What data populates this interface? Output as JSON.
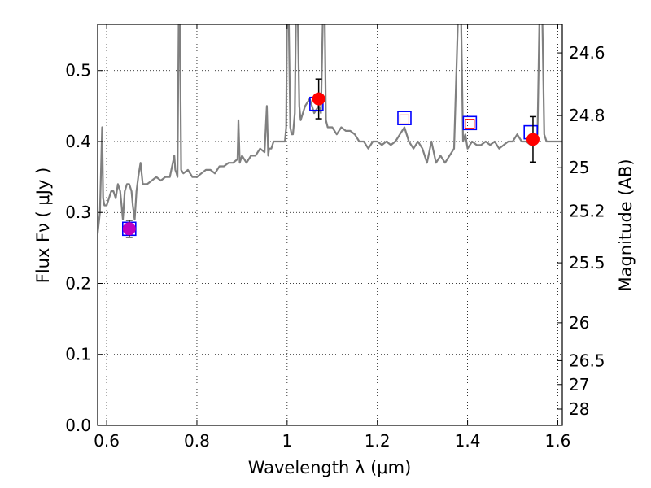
{
  "chart_data": {
    "type": "scatter",
    "xlabel": "Wavelength  λ (μm)",
    "ylabel": "Flux  Fν  ( μJy )",
    "y2label": "Magnitude (AB)",
    "xlim": [
      0.58,
      1.61
    ],
    "ylim": [
      0.0,
      0.565
    ],
    "grid": true,
    "x_ticks": [
      {
        "value": 0.6,
        "label": "0.6"
      },
      {
        "value": 0.8,
        "label": "0.8"
      },
      {
        "value": 1.0,
        "label": "1"
      },
      {
        "value": 1.2,
        "label": "1.2"
      },
      {
        "value": 1.4,
        "label": "1.4"
      },
      {
        "value": 1.6,
        "label": "1.6"
      }
    ],
    "y_ticks": [
      {
        "value": 0.0,
        "label": "0.0"
      },
      {
        "value": 0.1,
        "label": "0.1"
      },
      {
        "value": 0.2,
        "label": "0.2"
      },
      {
        "value": 0.3,
        "label": "0.3"
      },
      {
        "value": 0.4,
        "label": "0.4"
      },
      {
        "value": 0.5,
        "label": "0.5"
      }
    ],
    "y2_ticks": [
      {
        "mag": 24.6,
        "label": "24.6"
      },
      {
        "mag": 24.8,
        "label": "24.8"
      },
      {
        "mag": 25.0,
        "label": "25"
      },
      {
        "mag": 25.2,
        "label": "25.2"
      },
      {
        "mag": 25.5,
        "label": "25.5"
      },
      {
        "mag": 26.0,
        "label": "26"
      },
      {
        "mag": 26.5,
        "label": "26.5"
      },
      {
        "mag": 27.0,
        "label": "27"
      },
      {
        "mag": 28.0,
        "label": "28"
      }
    ],
    "series": [
      {
        "kind": "model_spectrum",
        "color": "#808080",
        "x": [
          0.58,
          0.585,
          0.59,
          0.592,
          0.595,
          0.6,
          0.605,
          0.61,
          0.615,
          0.62,
          0.625,
          0.63,
          0.633,
          0.636,
          0.64,
          0.645,
          0.65,
          0.655,
          0.658,
          0.662,
          0.666,
          0.67,
          0.675,
          0.68,
          0.69,
          0.7,
          0.71,
          0.72,
          0.73,
          0.74,
          0.75,
          0.752,
          0.755,
          0.757,
          0.76,
          0.762,
          0.765,
          0.77,
          0.78,
          0.79,
          0.8,
          0.81,
          0.82,
          0.83,
          0.84,
          0.85,
          0.86,
          0.87,
          0.88,
          0.89,
          0.892,
          0.895,
          0.9,
          0.91,
          0.92,
          0.93,
          0.94,
          0.95,
          0.955,
          0.958,
          0.96,
          0.965,
          0.97,
          0.98,
          0.99,
          0.995,
          0.998,
          1.0,
          1.003,
          1.007,
          1.01,
          1.013,
          1.017,
          1.02,
          1.023,
          1.027,
          1.03,
          1.035,
          1.04,
          1.05,
          1.06,
          1.07,
          1.075,
          1.08,
          1.083,
          1.086,
          1.09,
          1.1,
          1.11,
          1.12,
          1.13,
          1.14,
          1.15,
          1.16,
          1.17,
          1.18,
          1.19,
          1.2,
          1.21,
          1.22,
          1.23,
          1.24,
          1.25,
          1.26,
          1.27,
          1.28,
          1.29,
          1.3,
          1.31,
          1.32,
          1.33,
          1.34,
          1.35,
          1.36,
          1.37,
          1.38,
          1.385,
          1.39,
          1.395,
          1.4,
          1.41,
          1.42,
          1.43,
          1.44,
          1.45,
          1.46,
          1.47,
          1.48,
          1.49,
          1.5,
          1.51,
          1.52,
          1.53,
          1.54,
          1.55,
          1.555,
          1.56,
          1.565,
          1.57,
          1.575,
          1.58,
          1.59,
          1.6,
          1.61
        ],
        "y": [
          0.27,
          0.3,
          0.42,
          0.32,
          0.31,
          0.31,
          0.32,
          0.33,
          0.33,
          0.32,
          0.34,
          0.33,
          0.31,
          0.29,
          0.33,
          0.34,
          0.34,
          0.33,
          0.31,
          0.29,
          0.33,
          0.35,
          0.37,
          0.34,
          0.34,
          0.345,
          0.35,
          0.345,
          0.35,
          0.35,
          0.38,
          0.36,
          0.355,
          0.35,
          0.6,
          0.6,
          0.36,
          0.355,
          0.36,
          0.35,
          0.35,
          0.355,
          0.36,
          0.36,
          0.355,
          0.365,
          0.365,
          0.37,
          0.37,
          0.375,
          0.43,
          0.37,
          0.38,
          0.37,
          0.38,
          0.38,
          0.39,
          0.385,
          0.45,
          0.38,
          0.39,
          0.39,
          0.4,
          0.4,
          0.4,
          0.4,
          0.42,
          0.6,
          0.6,
          0.42,
          0.41,
          0.41,
          0.44,
          0.6,
          0.6,
          0.45,
          0.43,
          0.44,
          0.45,
          0.46,
          0.44,
          0.45,
          0.44,
          0.6,
          0.6,
          0.43,
          0.42,
          0.42,
          0.41,
          0.42,
          0.415,
          0.415,
          0.41,
          0.4,
          0.4,
          0.39,
          0.4,
          0.4,
          0.395,
          0.4,
          0.395,
          0.4,
          0.41,
          0.42,
          0.4,
          0.39,
          0.4,
          0.39,
          0.37,
          0.4,
          0.37,
          0.38,
          0.37,
          0.38,
          0.39,
          0.6,
          0.6,
          0.4,
          0.41,
          0.39,
          0.4,
          0.395,
          0.395,
          0.4,
          0.395,
          0.4,
          0.39,
          0.395,
          0.4,
          0.4,
          0.41,
          0.4,
          0.4,
          0.395,
          0.4,
          0.41,
          0.6,
          0.6,
          0.41,
          0.4,
          0.4,
          0.4,
          0.4,
          0.4
        ]
      },
      {
        "kind": "model_photometry",
        "marker": "open-square",
        "edge_color": "#0000ff",
        "x": [
          0.65,
          1.065,
          1.26,
          1.405,
          1.54
        ],
        "y": [
          0.277,
          0.453,
          0.433,
          0.426,
          0.413
        ]
      },
      {
        "kind": "inner_square",
        "marker": "open-square",
        "edge_color": "#ff0000",
        "x": [
          1.26,
          1.405
        ],
        "y": [
          0.431,
          0.425
        ]
      },
      {
        "kind": "observed",
        "marker": "filled-circle",
        "color": "#ff0000",
        "x": [
          1.07,
          1.545
        ],
        "y": [
          0.46,
          0.403
        ],
        "yerr": [
          0.028,
          0.032
        ]
      },
      {
        "kind": "observed",
        "marker": "filled-circle",
        "color": "#bf00bf",
        "x": [
          0.65
        ],
        "y": [
          0.277
        ],
        "yerr": [
          0.012
        ]
      }
    ]
  }
}
